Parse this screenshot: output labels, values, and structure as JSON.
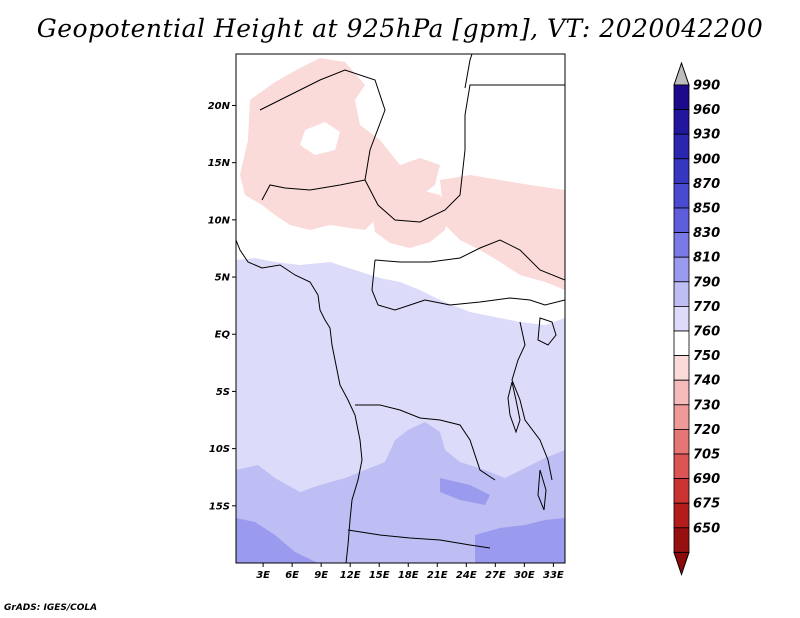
{
  "title": "Geopotential Height at 925hPa [gpm], VT: 2020042200",
  "credit": "GrADS: IGES/COLA",
  "map": {
    "lat_labels": [
      "20N",
      "15N",
      "10N",
      "5N",
      "EQ",
      "5S",
      "10S",
      "15S"
    ],
    "lat_values": [
      20,
      15,
      10,
      5,
      0,
      -5,
      -10,
      -15
    ],
    "lon_labels": [
      "3E",
      "6E",
      "9E",
      "12E",
      "15E",
      "18E",
      "21E",
      "24E",
      "27E",
      "30E",
      "33E"
    ],
    "lon_values": [
      3,
      6,
      9,
      12,
      15,
      18,
      21,
      24,
      27,
      30,
      33
    ],
    "extent": {
      "lon_min": 0.2,
      "lon_max": 34.2,
      "lat_min": -20,
      "lat_max": 24.5
    }
  },
  "colorbar": {
    "labels": [
      "990",
      "960",
      "930",
      "900",
      "870",
      "850",
      "830",
      "810",
      "790",
      "770",
      "760",
      "750",
      "740",
      "730",
      "720",
      "705",
      "690",
      "675",
      "650"
    ],
    "colors": [
      "#bdbdbd",
      "#1c0a8c",
      "#22169e",
      "#2a26b0",
      "#3636c0",
      "#4a4ad0",
      "#5e5edc",
      "#7a7ae6",
      "#9a9aee",
      "#bebef4",
      "#dcdcfa",
      "#ffffff",
      "#fbdada",
      "#f5baba",
      "#ef9a9a",
      "#e67676",
      "#dc5454",
      "#cc3232",
      "#b41c1c",
      "#961010",
      "#8c0a0a"
    ]
  },
  "field_colors": {
    "pink": "#fbdada",
    "white": "#ffffff",
    "light_blue": "#dcdcfa",
    "mid_blue": "#bebef4",
    "deep_blue": "#9a9aee"
  }
}
